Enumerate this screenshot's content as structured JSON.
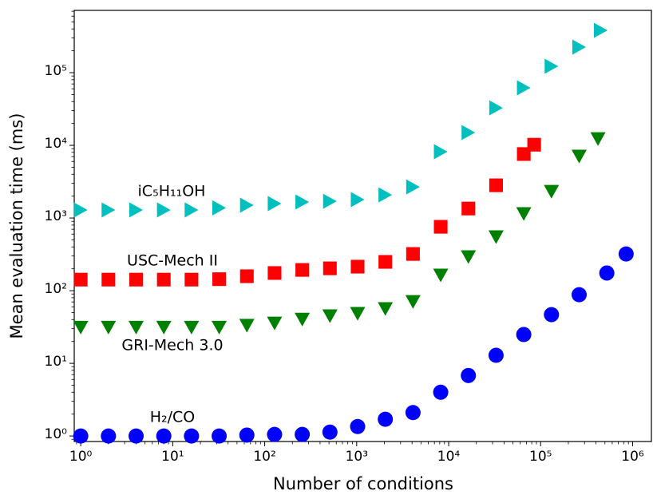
{
  "chart_data": {
    "type": "scatter",
    "x_label": "Number of conditions",
    "y_label": "Mean evaluation time (ms)",
    "xscale": "log",
    "yscale": "log",
    "xlim": [
      0.85,
      1600000
    ],
    "ylim": [
      0.84,
      720000
    ],
    "xticks": [
      {
        "value": 1,
        "label": "10⁰"
      },
      {
        "value": 10,
        "label": "10¹"
      },
      {
        "value": 100,
        "label": "10²"
      },
      {
        "value": 1000,
        "label": "10³"
      },
      {
        "value": 10000,
        "label": "10⁴"
      },
      {
        "value": 100000,
        "label": "10⁵"
      },
      {
        "value": 1000000,
        "label": "10⁶"
      }
    ],
    "yticks": [
      {
        "value": 1,
        "label": "10⁰"
      },
      {
        "value": 10,
        "label": "10¹"
      },
      {
        "value": 100,
        "label": "10²"
      },
      {
        "value": 1000,
        "label": "10³"
      },
      {
        "value": 10000,
        "label": "10⁴"
      },
      {
        "value": 100000,
        "label": "10⁵"
      }
    ],
    "series": [
      {
        "name": "iC₅H₁₁OH",
        "color": "#00bfbf",
        "marker": "triangle-right",
        "x": [
          1,
          2,
          4,
          8,
          16,
          32,
          64,
          128,
          256,
          512,
          1024,
          2048,
          4096,
          8192,
          16384,
          32768,
          65536,
          131072,
          262144,
          450000
        ],
        "values": [
          1290,
          1290,
          1290,
          1290,
          1290,
          1380,
          1500,
          1580,
          1660,
          1700,
          1790,
          2080,
          2680,
          8170,
          15000,
          32800,
          61800,
          122500,
          225000,
          382000
        ]
      },
      {
        "name": "USC-Mech II",
        "color": "#ff0000",
        "marker": "square",
        "x": [
          1,
          2,
          4,
          8,
          16,
          32,
          64,
          128,
          256,
          512,
          1024,
          2048,
          4096,
          8192,
          16384,
          32768,
          65536,
          85000
        ],
        "values": [
          142,
          142,
          142,
          142,
          142,
          144,
          158,
          175,
          193,
          203,
          214,
          249,
          320,
          757,
          1350,
          2820,
          7590,
          10200
        ]
      },
      {
        "name": "GRI-Mech 3.0",
        "color": "#008000",
        "marker": "triangle-down",
        "x": [
          1,
          2,
          4,
          8,
          16,
          32,
          64,
          128,
          256,
          512,
          1024,
          2048,
          4096,
          8192,
          16384,
          32768,
          65536,
          131072,
          262144,
          420000
        ],
        "values": [
          31,
          31,
          31,
          31,
          31,
          31,
          33,
          35.4,
          40,
          44.5,
          48,
          56,
          70,
          162,
          290,
          545,
          1135,
          2300,
          7020,
          12200
        ]
      },
      {
        "name": "H₂/CO",
        "color": "#0000ff",
        "marker": "circle",
        "x": [
          1,
          2,
          4,
          8,
          16,
          32,
          64,
          128,
          256,
          512,
          1024,
          2048,
          4096,
          8192,
          16384,
          32768,
          65536,
          131072,
          262144,
          524288,
          850000
        ],
        "values": [
          1.0,
          1.0,
          1.0,
          1.0,
          1.0,
          1.0,
          1.03,
          1.05,
          1.05,
          1.13,
          1.35,
          1.7,
          2.1,
          4.0,
          6.8,
          12.9,
          24.9,
          46.8,
          88,
          175,
          320
        ]
      }
    ]
  }
}
